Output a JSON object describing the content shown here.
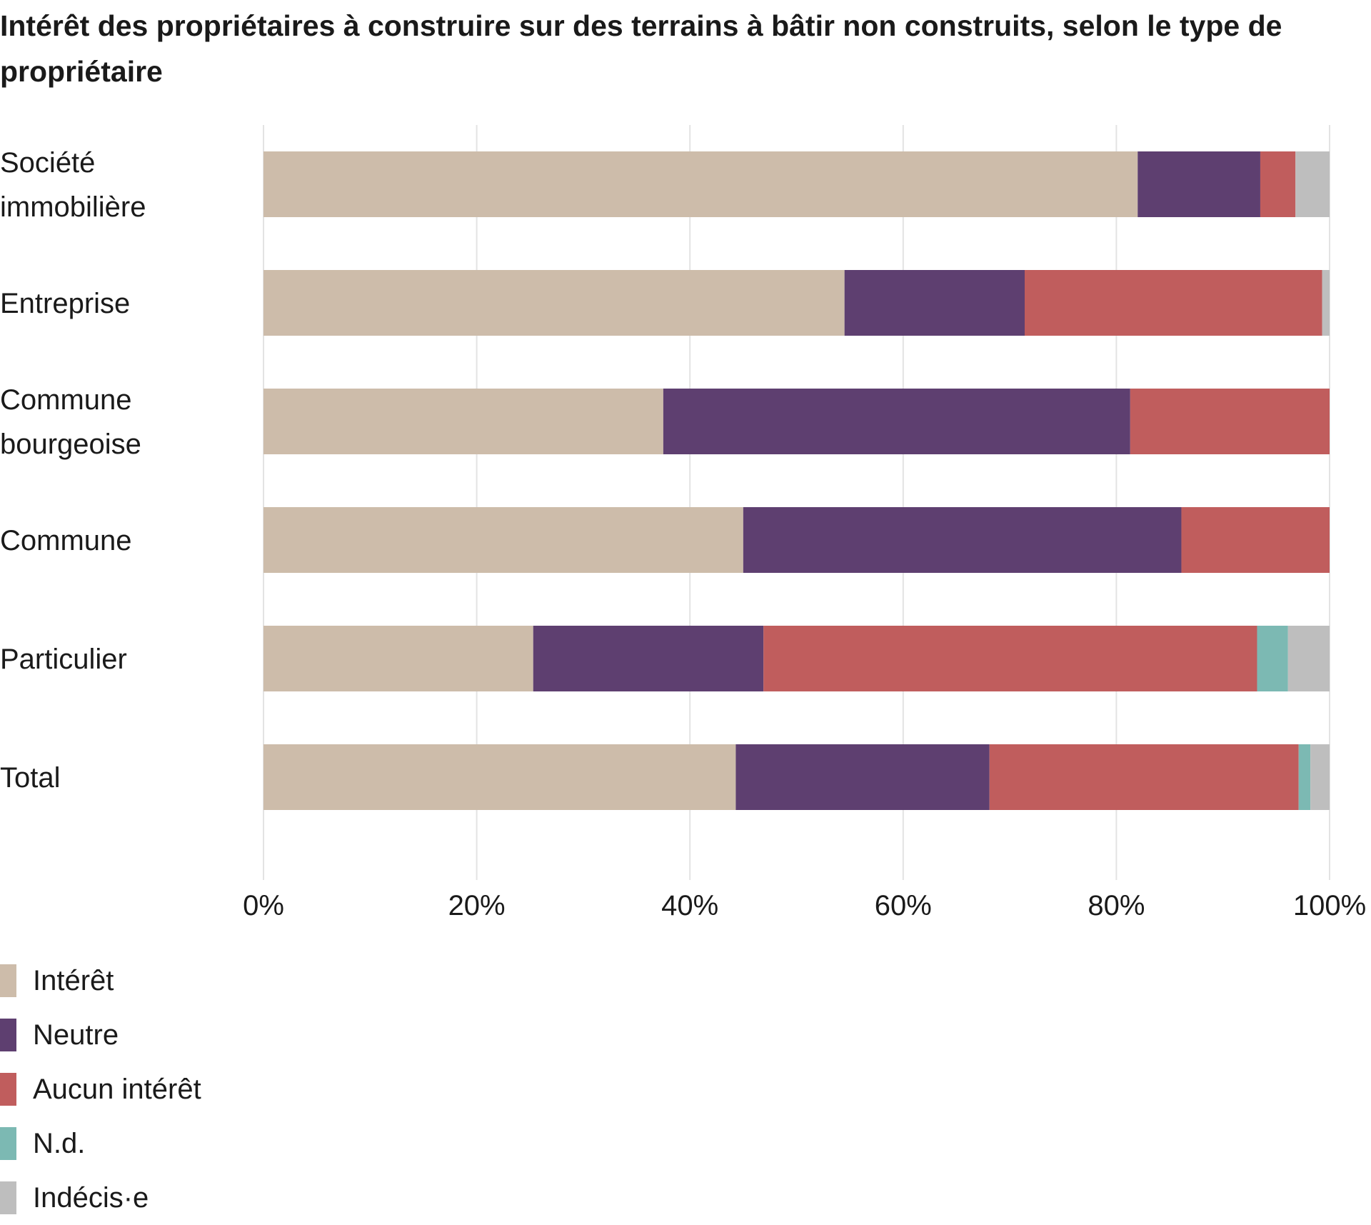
{
  "chart_data": {
    "type": "bar",
    "orientation": "horizontal",
    "stacked": true,
    "title": "Intérêt des propriétaires à construire sur des terrains à bâtir non construits, selon le type de propriétaire",
    "xlabel": "",
    "ylabel": "",
    "xlim": [
      0,
      100
    ],
    "xticks": [
      "0%",
      "20%",
      "40%",
      "60%",
      "80%",
      "100%"
    ],
    "grid": true,
    "legend_position": "bottom-left",
    "categories": [
      [
        "Société",
        "immobilière"
      ],
      [
        "Entreprise"
      ],
      [
        "Commune",
        "bourgeoise"
      ],
      [
        "Commune"
      ],
      [
        "Particulier"
      ],
      [
        "Total"
      ]
    ],
    "series": [
      {
        "name": "Intérêt",
        "color": "#cdbcaa",
        "values": [
          82,
          54.5,
          37.5,
          45,
          25.3,
          44.3
        ]
      },
      {
        "name": "Neutre",
        "color": "#5e3f70",
        "values": [
          11.5,
          16.9,
          43.8,
          41.1,
          21.6,
          23.8
        ]
      },
      {
        "name": "Aucun intérêt",
        "color": "#c05d5d",
        "values": [
          3.3,
          27.9,
          18.7,
          13.9,
          46.3,
          29
        ]
      },
      {
        "name": "N.d.",
        "color": "#7cb9b3",
        "values": [
          0,
          0,
          0,
          0,
          2.9,
          1.1
        ]
      },
      {
        "name": "Indécis·e",
        "color": "#bebebe",
        "values": [
          3.2,
          0.7,
          0,
          0,
          3.9,
          1.8
        ]
      }
    ]
  }
}
